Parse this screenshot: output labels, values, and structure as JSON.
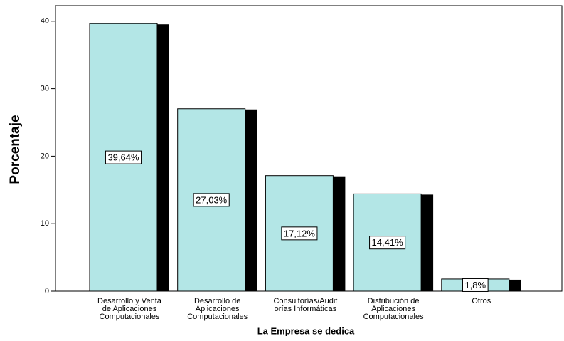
{
  "chart_data": {
    "type": "bar",
    "x_label": "La Empresa se dedica",
    "y_label": "Porcentaje",
    "categories": [
      "Desarrollo y Venta de Aplicaciones Computacionales",
      "Desarrollo de Aplicaciones Computacionales",
      "Consultorías/Auditorías Informáticas",
      "Distribución de Aplicaciones Computacionales",
      "Otros"
    ],
    "values": [
      39.64,
      27.03,
      17.12,
      14.41,
      1.8
    ],
    "value_labels": [
      "39,64%",
      "27,03%",
      "17,12%",
      "14,41%",
      "1,8%"
    ],
    "color": "#b3e6e6",
    "ylim": [
      0,
      42.3
    ],
    "yticks": [
      0,
      10,
      20,
      30,
      40
    ]
  }
}
